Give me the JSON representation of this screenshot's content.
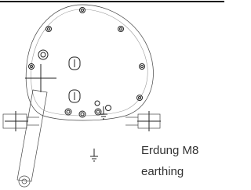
{
  "annotation": {
    "label": "Erdung M8",
    "translation": "earthing"
  }
}
